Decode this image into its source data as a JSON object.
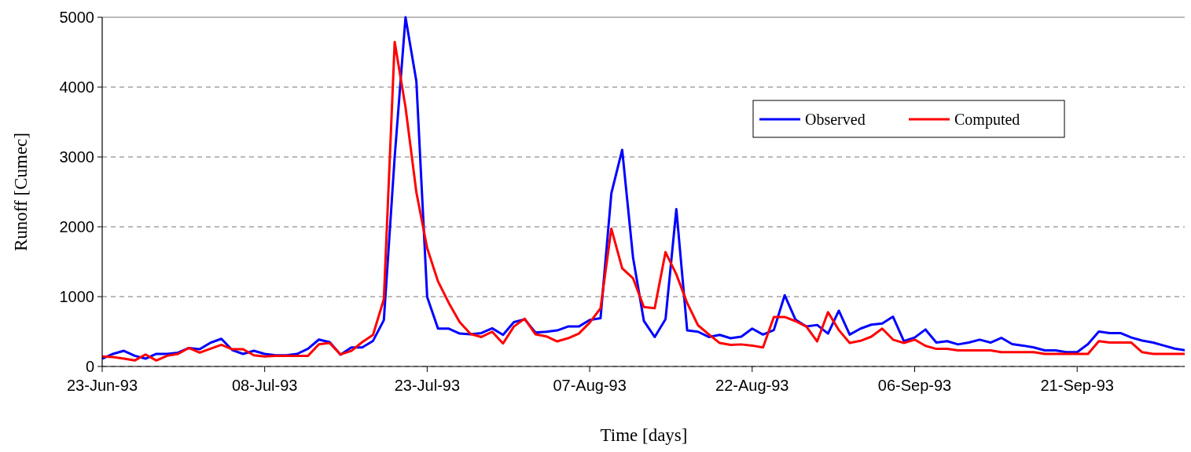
{
  "chart_data": {
    "type": "line",
    "xlabel": "Time [days]",
    "ylabel": "Runoff [Cumec]",
    "x": [
      "1993-06-23",
      "1993-06-24",
      "1993-06-25",
      "1993-06-26",
      "1993-06-27",
      "1993-06-28",
      "1993-06-29",
      "1993-06-30",
      "1993-07-01",
      "1993-07-02",
      "1993-07-03",
      "1993-07-04",
      "1993-07-05",
      "1993-07-06",
      "1993-07-07",
      "1993-07-08",
      "1993-07-09",
      "1993-07-10",
      "1993-07-11",
      "1993-07-12",
      "1993-07-13",
      "1993-07-14",
      "1993-07-15",
      "1993-07-16",
      "1993-07-17",
      "1993-07-18",
      "1993-07-19",
      "1993-07-20",
      "1993-07-21",
      "1993-07-22",
      "1993-07-23",
      "1993-07-24",
      "1993-07-25",
      "1993-07-26",
      "1993-07-27",
      "1993-07-28",
      "1993-07-29",
      "1993-07-30",
      "1993-07-31",
      "1993-08-01",
      "1993-08-02",
      "1993-08-03",
      "1993-08-04",
      "1993-08-05",
      "1993-08-06",
      "1993-08-07",
      "1993-08-08",
      "1993-08-09",
      "1993-08-10",
      "1993-08-11",
      "1993-08-12",
      "1993-08-13",
      "1993-08-14",
      "1993-08-15",
      "1993-08-16",
      "1993-08-17",
      "1993-08-18",
      "1993-08-19",
      "1993-08-20",
      "1993-08-21",
      "1993-08-22",
      "1993-08-23",
      "1993-08-24",
      "1993-08-25",
      "1993-08-26",
      "1993-08-27",
      "1993-08-28",
      "1993-08-29",
      "1993-08-30",
      "1993-08-31",
      "1993-09-01",
      "1993-09-02",
      "1993-09-03",
      "1993-09-04",
      "1993-09-05",
      "1993-09-06",
      "1993-09-07",
      "1993-09-08",
      "1993-09-09",
      "1993-09-10",
      "1993-09-11",
      "1993-09-12",
      "1993-09-13",
      "1993-09-14",
      "1993-09-15",
      "1993-09-16",
      "1993-09-17",
      "1993-09-18",
      "1993-09-19",
      "1993-09-20",
      "1993-09-21",
      "1993-09-22",
      "1993-09-23",
      "1993-09-24",
      "1993-09-25",
      "1993-09-26",
      "1993-09-27",
      "1993-09-28",
      "1993-09-29",
      "1993-09-30",
      "1993-10-01"
    ],
    "series": [
      {
        "name": "Observed",
        "color": "#0000ff",
        "values": [
          112,
          180,
          224,
          153,
          112,
          180,
          180,
          198,
          265,
          247,
          340,
          396,
          235,
          180,
          224,
          180,
          160,
          160,
          180,
          254,
          385,
          348,
          168,
          273,
          273,
          366,
          665,
          3000,
          5000,
          4085,
          994,
          542,
          542,
          471,
          460,
          478,
          546,
          452,
          635,
          676,
          486,
          497,
          516,
          572,
          572,
          665,
          691,
          2478,
          3102,
          1562,
          654,
          422,
          676,
          2253,
          516,
          497,
          422,
          452,
          404,
          427,
          542,
          457,
          521,
          1020,
          670,
          572,
          594,
          470,
          798,
          457,
          542,
          598,
          615,
          713,
          363,
          414,
          529,
          342,
          363,
          316,
          342,
          384,
          342,
          410,
          320,
          299,
          273,
          231,
          231,
          205,
          205,
          320,
          500,
          478,
          478,
          414,
          371,
          342,
          299,
          256,
          231
        ]
      },
      {
        "name": "Computed",
        "color": "#ff0000",
        "values": [
          142,
          135,
          112,
          86,
          172,
          86,
          153,
          180,
          265,
          198,
          254,
          310,
          247,
          247,
          160,
          142,
          153,
          153,
          153,
          153,
          318,
          336,
          172,
          224,
          348,
          452,
          964,
          4645,
          3711,
          2496,
          1693,
          1218,
          908,
          635,
          467,
          422,
          497,
          329,
          572,
          684,
          460,
          430,
          359,
          404,
          471,
          628,
          833,
          1973,
          1405,
          1263,
          852,
          833,
          1637,
          1319,
          908,
          590,
          460,
          336,
          310,
          316,
          299,
          273,
          709,
          709,
          649,
          572,
          359,
          777,
          521,
          337,
          367,
          427,
          542,
          384,
          337,
          384,
          295,
          252,
          252,
          231,
          231,
          231,
          231,
          205,
          205,
          205,
          205,
          179,
          179,
          179,
          179,
          179,
          363,
          342,
          342,
          342,
          205,
          179,
          179,
          179,
          179
        ]
      }
    ],
    "xlim": [
      "1993-06-23",
      "1993-10-01"
    ],
    "xticks": [
      {
        "value": "1993-06-23",
        "label": "23-Jun-93"
      },
      {
        "value": "1993-07-08",
        "label": "08-Jul-93"
      },
      {
        "value": "1993-07-23",
        "label": "23-Jul-93"
      },
      {
        "value": "1993-08-07",
        "label": "07-Aug-93"
      },
      {
        "value": "1993-08-22",
        "label": "22-Aug-93"
      },
      {
        "value": "1993-09-06",
        "label": "06-Sep-93"
      },
      {
        "value": "1993-09-21",
        "label": "21-Sep-93"
      }
    ],
    "ylim": [
      0,
      5000
    ],
    "yticks": [
      0,
      1000,
      2000,
      3000,
      4000,
      5000
    ],
    "grid": "y",
    "legend": "top right",
    "marker": "none",
    "line_style": "solid"
  }
}
